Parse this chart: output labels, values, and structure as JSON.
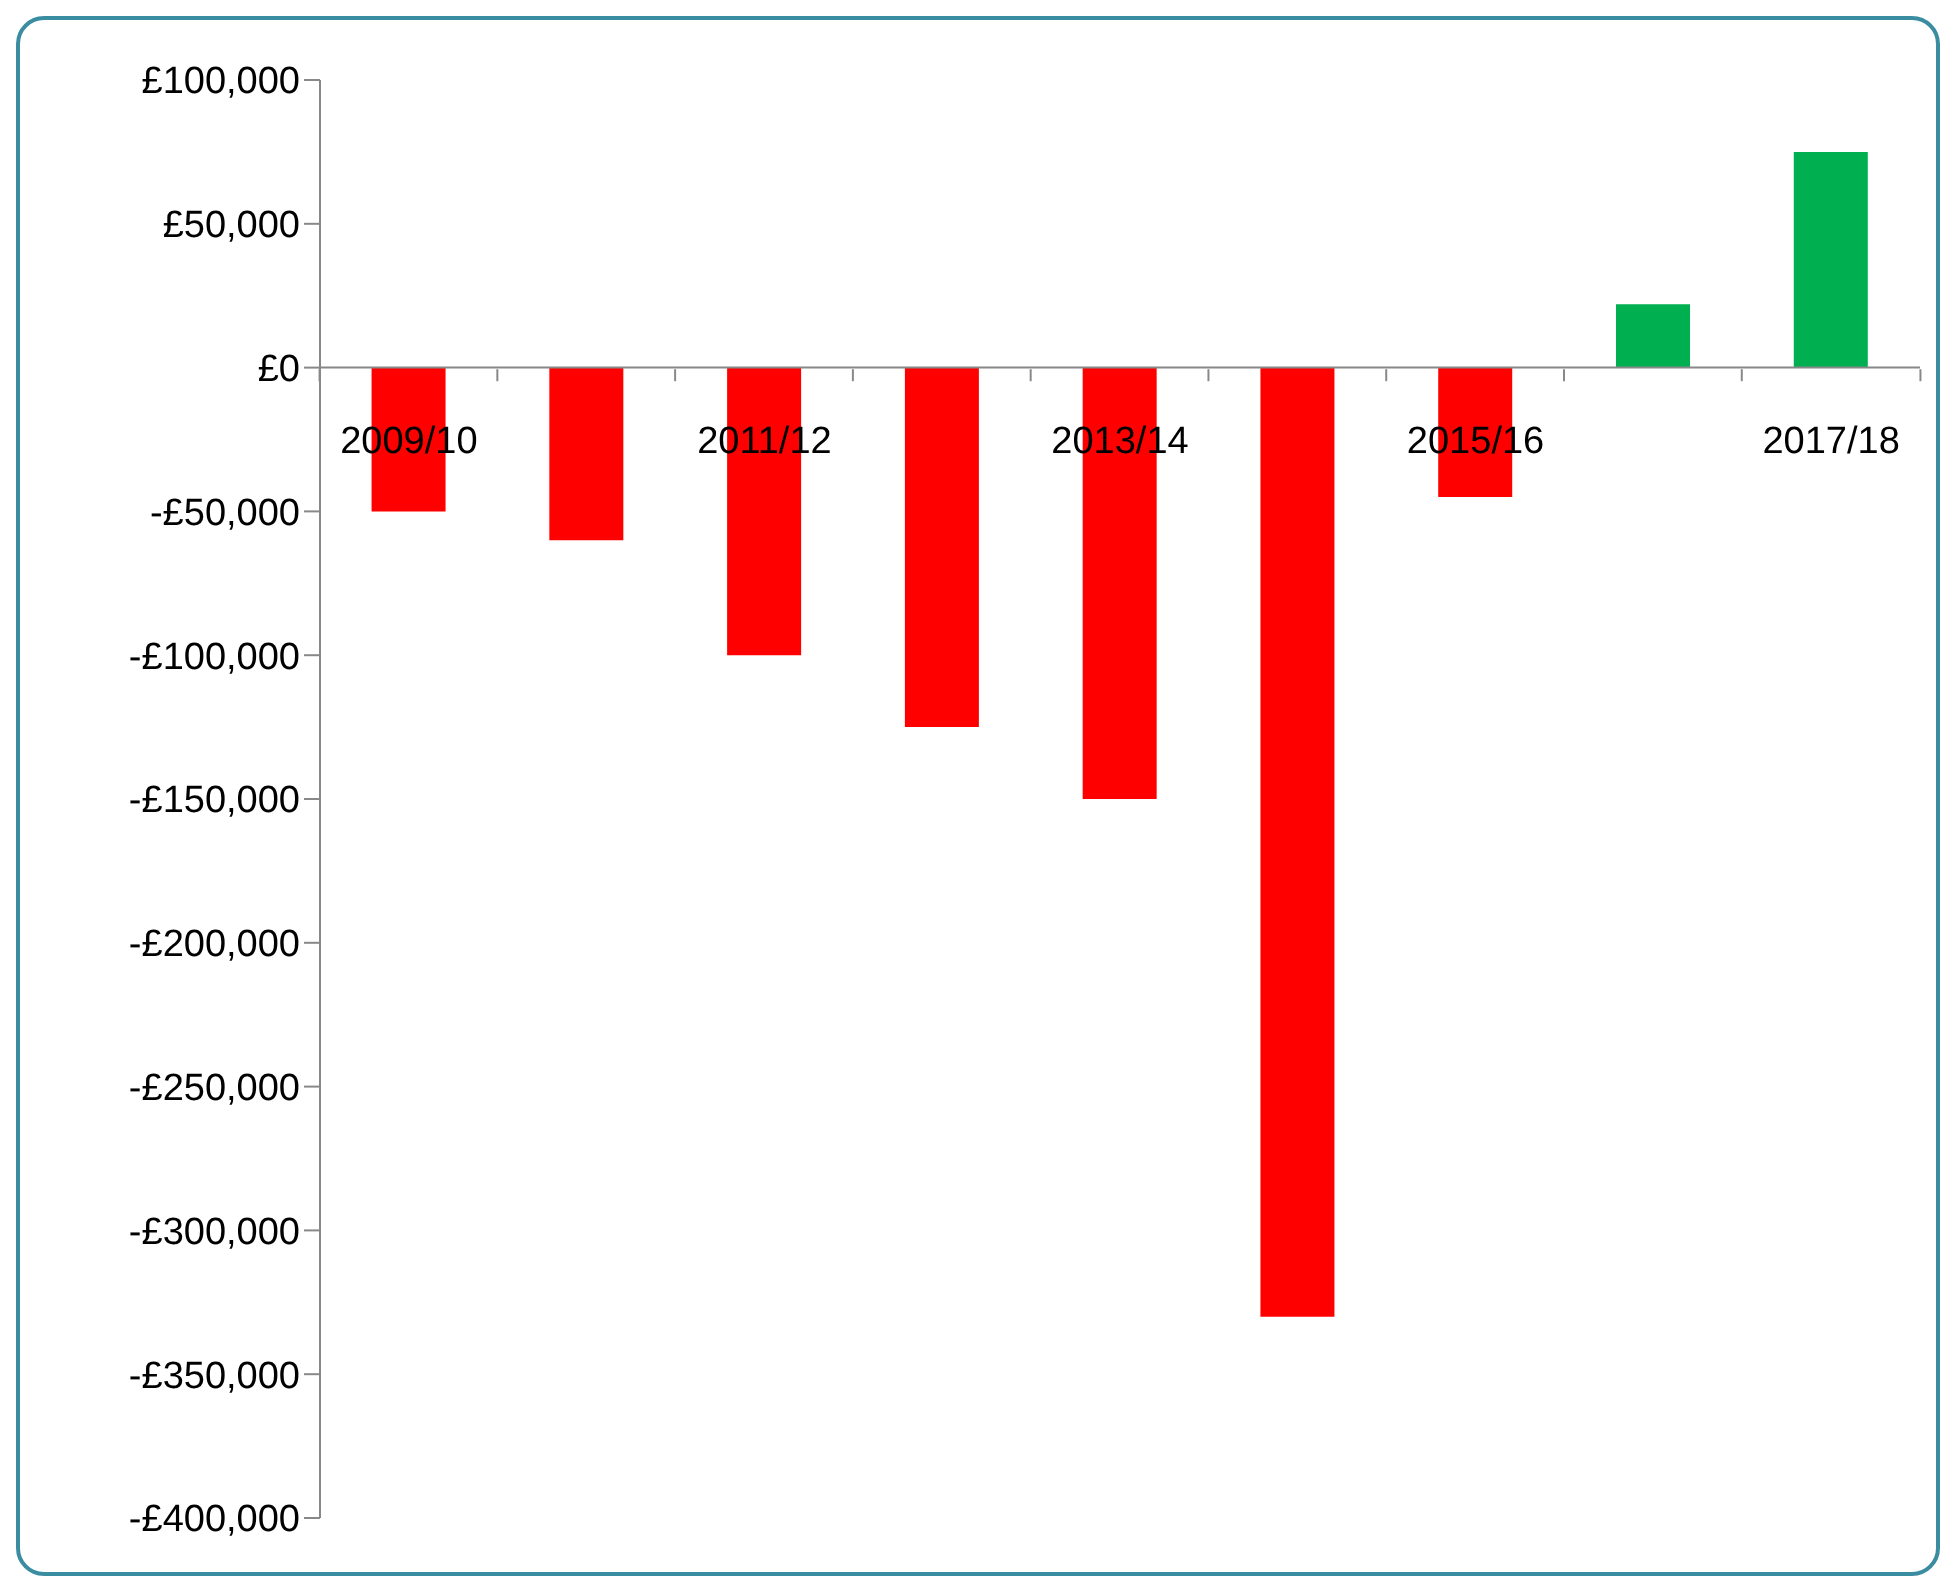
{
  "chart_data": {
    "type": "bar",
    "categories": [
      "2009/10",
      null,
      "2011/12",
      null,
      "2013/14",
      null,
      "2015/16",
      null,
      "2017/18"
    ],
    "values": [
      -50000,
      -60000,
      -100000,
      -125000,
      -150000,
      -330000,
      -45000,
      22000,
      75000
    ],
    "colors": [
      "#ff0000",
      "#ff0000",
      "#ff0000",
      "#ff0000",
      "#ff0000",
      "#ff0000",
      "#ff0000",
      "#00b050",
      "#00b050"
    ],
    "ylim": [
      -400000,
      100000
    ],
    "yticks": [
      {
        "value": -400000,
        "label": "-£400,000"
      },
      {
        "value": -350000,
        "label": "-£350,000"
      },
      {
        "value": -300000,
        "label": "-£300,000"
      },
      {
        "value": -250000,
        "label": "-£250,000"
      },
      {
        "value": -200000,
        "label": "-£200,000"
      },
      {
        "value": -150000,
        "label": "-£150,000"
      },
      {
        "value": -100000,
        "label": "-£100,000"
      },
      {
        "value": -50000,
        "label": "-£50,000"
      },
      {
        "value": 0,
        "label": "£0"
      },
      {
        "value": 50000,
        "label": "£50,000"
      },
      {
        "value": 100000,
        "label": "£100,000"
      }
    ]
  }
}
